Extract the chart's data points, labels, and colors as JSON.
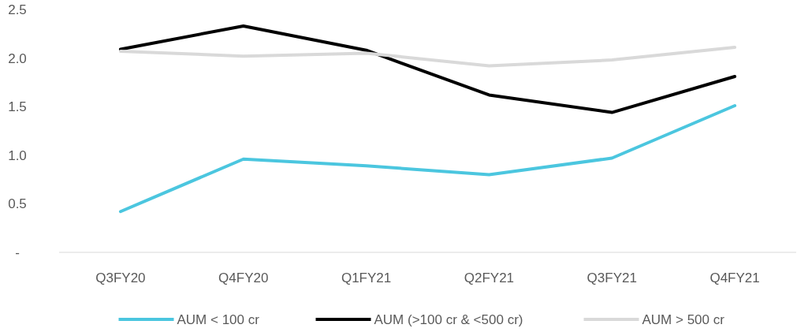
{
  "chart_data": {
    "type": "line",
    "categories": [
      "Q3FY20",
      "Q4FY20",
      "Q1FY21",
      "Q2FY21",
      "Q3FY21",
      "Q4FY21"
    ],
    "series": [
      {
        "name": "AUM < 100 cr",
        "color": "#4bc6df",
        "values": [
          0.42,
          0.96,
          0.89,
          0.8,
          0.97,
          1.51
        ]
      },
      {
        "name": "AUM (>100 cr & <500 cr)",
        "color": "#000000",
        "values": [
          2.09,
          2.33,
          2.08,
          1.62,
          1.44,
          1.81
        ]
      },
      {
        "name": "AUM > 500 cr",
        "color": "#d9d9d9",
        "values": [
          2.07,
          2.02,
          2.05,
          1.92,
          1.98,
          2.11
        ]
      }
    ],
    "ylim": [
      0,
      2.5
    ],
    "yticks": [
      {
        "value": 0,
        "label": "-"
      },
      0.5,
      {
        "value": 1,
        "label": "1.0"
      },
      1.5,
      {
        "value": 2,
        "label": "2.0"
      },
      2.5
    ],
    "grid": false,
    "legend": "bottom",
    "marker": "none",
    "line_style": "solid"
  }
}
